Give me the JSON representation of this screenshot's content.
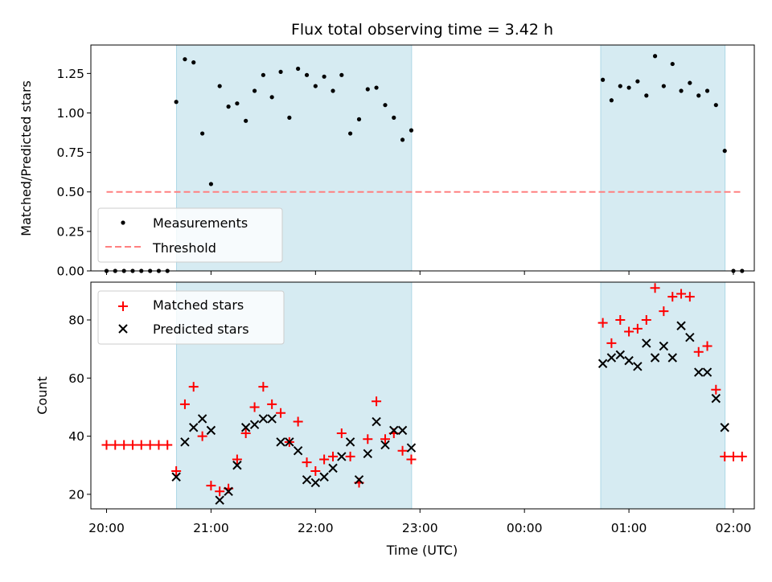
{
  "chart_data": {
    "title": "Flux total observing time = 3.42 h",
    "xlabel": "Time (UTC)",
    "x_tick_labels": [
      "20:00",
      "21:00",
      "22:00",
      "23:00",
      "00:00",
      "01:00",
      "02:00"
    ],
    "x_ticks_hours": [
      0,
      1,
      2,
      3,
      4,
      5,
      6
    ],
    "x_origin": "20:00 UTC",
    "xlim_hours": [
      -0.15,
      6.2
    ],
    "shaded_intervals_hours": [
      [
        0.67,
        2.92
      ],
      [
        4.73,
        5.92
      ]
    ],
    "shade_color": "#add8e6",
    "panels": [
      {
        "type": "scatter",
        "ylabel": "Matched/Predicted stars",
        "ylim": [
          0,
          1.43
        ],
        "y_ticks": [
          "0.00",
          "0.25",
          "0.50",
          "0.75",
          "1.00",
          "1.25"
        ],
        "legend": {
          "placement": "lower-left",
          "entries": [
            "Measurements",
            "Threshold"
          ]
        },
        "series": [
          {
            "name": "Measurements",
            "marker": "dot",
            "color": "#000000",
            "x": [
              0,
              0.083,
              0.167,
              0.25,
              0.333,
              0.417,
              0.5,
              0.583,
              0.667,
              0.75,
              0.833,
              0.917,
              1.0,
              1.083,
              1.167,
              1.25,
              1.333,
              1.417,
              1.5,
              1.583,
              1.667,
              1.75,
              1.833,
              1.917,
              2.0,
              2.083,
              2.167,
              2.25,
              2.333,
              2.417,
              2.5,
              2.583,
              2.667,
              2.75,
              2.833,
              2.917,
              4.75,
              4.833,
              4.917,
              5.0,
              5.083,
              5.167,
              5.25,
              5.333,
              5.417,
              5.5,
              5.583,
              5.667,
              5.75,
              5.833,
              5.917,
              6.0,
              6.083
            ],
            "y": [
              0,
              0,
              0,
              0,
              0,
              0,
              0,
              0,
              1.07,
              1.34,
              1.32,
              0.87,
              0.55,
              1.17,
              1.04,
              1.06,
              0.95,
              1.14,
              1.24,
              1.1,
              1.26,
              0.97,
              1.28,
              1.24,
              1.17,
              1.23,
              1.14,
              1.24,
              0.87,
              0.96,
              1.15,
              1.16,
              1.05,
              0.97,
              0.83,
              0.89,
              1.21,
              1.08,
              1.17,
              1.16,
              1.2,
              1.11,
              1.36,
              1.17,
              1.31,
              1.14,
              1.19,
              1.11,
              1.14,
              1.05,
              0.76,
              0,
              0
            ]
          },
          {
            "name": "Threshold",
            "type": "line",
            "style": "dashed",
            "color": "#ff8080",
            "x": [
              0,
              6.083
            ],
            "y": [
              0.5,
              0.5
            ]
          }
        ]
      },
      {
        "type": "scatter",
        "ylabel": "Count",
        "ylim": [
          15,
          93
        ],
        "y_ticks": [
          "20",
          "40",
          "60",
          "80"
        ],
        "legend": {
          "placement": "upper-left",
          "entries": [
            "Matched stars",
            "Predicted stars"
          ]
        },
        "series": [
          {
            "name": "Matched stars",
            "marker": "plus",
            "color": "#ff0000",
            "x": [
              0,
              0.083,
              0.167,
              0.25,
              0.333,
              0.417,
              0.5,
              0.583,
              0.667,
              0.75,
              0.833,
              0.917,
              1.0,
              1.083,
              1.167,
              1.25,
              1.333,
              1.417,
              1.5,
              1.583,
              1.667,
              1.75,
              1.833,
              1.917,
              2.0,
              2.083,
              2.167,
              2.25,
              2.333,
              2.417,
              2.5,
              2.583,
              2.667,
              2.75,
              2.833,
              2.917,
              4.75,
              4.833,
              4.917,
              5.0,
              5.083,
              5.167,
              5.25,
              5.333,
              5.417,
              5.5,
              5.583,
              5.667,
              5.75,
              5.833,
              5.917,
              6.0,
              6.083
            ],
            "y": [
              37,
              37,
              37,
              37,
              37,
              37,
              37,
              37,
              28,
              51,
              57,
              40,
              23,
              21,
              22,
              32,
              41,
              50,
              57,
              51,
              48,
              38,
              45,
              31,
              28,
              32,
              33,
              41,
              33,
              24,
              39,
              52,
              39,
              41,
              35,
              32,
              79,
              72,
              80,
              76,
              77,
              80,
              91,
              83,
              88,
              89,
              88,
              69,
              71,
              56,
              33,
              33,
              33
            ]
          },
          {
            "name": "Predicted stars",
            "marker": "x",
            "color": "#000000",
            "x": [
              0.667,
              0.75,
              0.833,
              0.917,
              1.0,
              1.083,
              1.167,
              1.25,
              1.333,
              1.417,
              1.5,
              1.583,
              1.667,
              1.75,
              1.833,
              1.917,
              2.0,
              2.083,
              2.167,
              2.25,
              2.333,
              2.417,
              2.5,
              2.583,
              2.667,
              2.75,
              2.833,
              2.917,
              4.75,
              4.833,
              4.917,
              5.0,
              5.083,
              5.167,
              5.25,
              5.333,
              5.417,
              5.5,
              5.583,
              5.667,
              5.75,
              5.833,
              5.917
            ],
            "y": [
              26,
              38,
              43,
              46,
              42,
              18,
              21,
              30,
              43,
              44,
              46,
              46,
              38,
              38,
              35,
              25,
              24,
              26,
              29,
              33,
              38,
              25,
              34,
              45,
              37,
              42,
              42,
              36,
              65,
              67,
              68,
              66,
              64,
              72,
              67,
              71,
              67,
              78,
              74,
              62,
              62,
              53,
              43
            ]
          }
        ]
      }
    ]
  }
}
